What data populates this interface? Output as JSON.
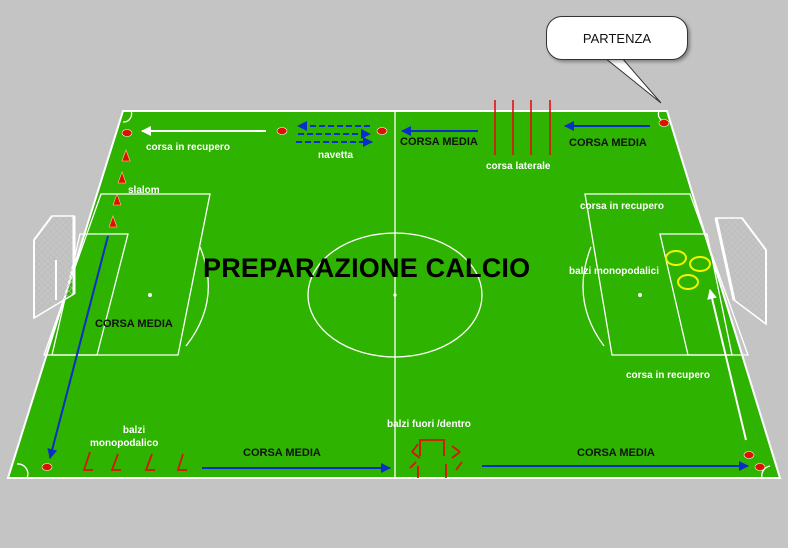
{
  "title": "PREPARAZIONE CALCIO",
  "callout": "PARTENZA",
  "labels": {
    "corsa_in_recupero_top_left": "corsa in recupero",
    "navetta": "navetta",
    "corsa_media_top_center": "CORSA MEDIA",
    "corsa_laterale": "corsa laterale",
    "corsa_media_top_right": "CORSA MEDIA",
    "slalom": "slalom",
    "corsa_in_recupero_right_top": "corsa in recupero",
    "balzi_monopodalici_right": "balzi monopodalici",
    "corsa_media_left": "CORSA MEDIA",
    "corsa_in_recupero_right_bottom": "corsa in recupero",
    "balzi_fuori_dentro": "balzi fuori /dentro",
    "balzi_line1": "balzi",
    "balzi_line2": "monopodalico",
    "corsa_media_bottom_left": "CORSA MEDIA",
    "corsa_media_bottom_right": "CORSA MEDIA"
  },
  "colors": {
    "pitch": "#2db300",
    "lines": "#ffffff",
    "cone": "#dd1100",
    "arrow_blue": "#0b2ec8",
    "ring": "#f4f400",
    "background": "#c4c4c4"
  }
}
